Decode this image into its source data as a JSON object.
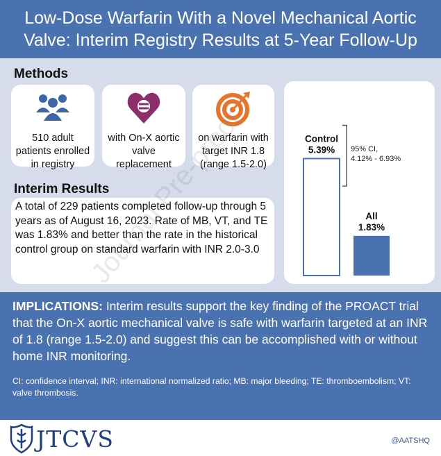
{
  "title": "Low-Dose Warfarin With a Novel Mechanical Aortic Valve: Interim Registry Results at 5-Year Follow-Up",
  "methods": {
    "heading": "Methods",
    "cards": [
      {
        "icon": "people-icon",
        "text": "510 adult patients enrolled in registry"
      },
      {
        "icon": "heart-valve-icon",
        "text": "with On-X aortic valve replacement"
      },
      {
        "icon": "target-icon",
        "text": "on warfarin with target INR 1.8 (range 1.5-2.0)"
      }
    ]
  },
  "results": {
    "heading": "Interim Results",
    "text": "A total of 229 patients completed follow-up through 5 years as of August 16, 2023. Rate of MB, VT, and TE was 1.83% and better than the rate in the historical control group on standard warfarin with INR 2.0-3.0"
  },
  "chart_data": {
    "type": "bar",
    "categories": [
      "Control",
      "All"
    ],
    "values": [
      5.39,
      1.83
    ],
    "value_labels": [
      "5.39%",
      "1.83%"
    ],
    "ci_label_line1": "95% CI,",
    "ci_label_line2": "4.12% - 6.93%",
    "ci": [
      4.12,
      6.93
    ],
    "bar_styles": [
      "outline",
      "filled"
    ],
    "colors": {
      "filled": "#4a72b0",
      "outline": "#4a72b0"
    },
    "ylim": [
      0,
      7.1
    ]
  },
  "implications": {
    "label": "IMPLICATIONS:",
    "text": " Interim results support the key finding of the PROACT trial that the On-X aortic mechanical valve is safe with warfarin targeted at an INR of 1.8 (range 1.5-2.0) and suggest this can be accomplished with or without home INR monitoring."
  },
  "footnote": "CI: confidence interval; INR: international normalized ratio; MB: major bleeding; TE: thromboembolism; VT: valve thrombosis.",
  "footer": {
    "logo_text": "JTCVS",
    "handle": "@AATSHQ"
  },
  "watermark": "Journal Pre-proof",
  "colors": {
    "brand_blue": "#4a72b0",
    "panel_bg": "#d6dceb",
    "icon_blue": "#3d66a8",
    "icon_purple": "#8c2f68",
    "icon_orange": "#e8742a"
  }
}
